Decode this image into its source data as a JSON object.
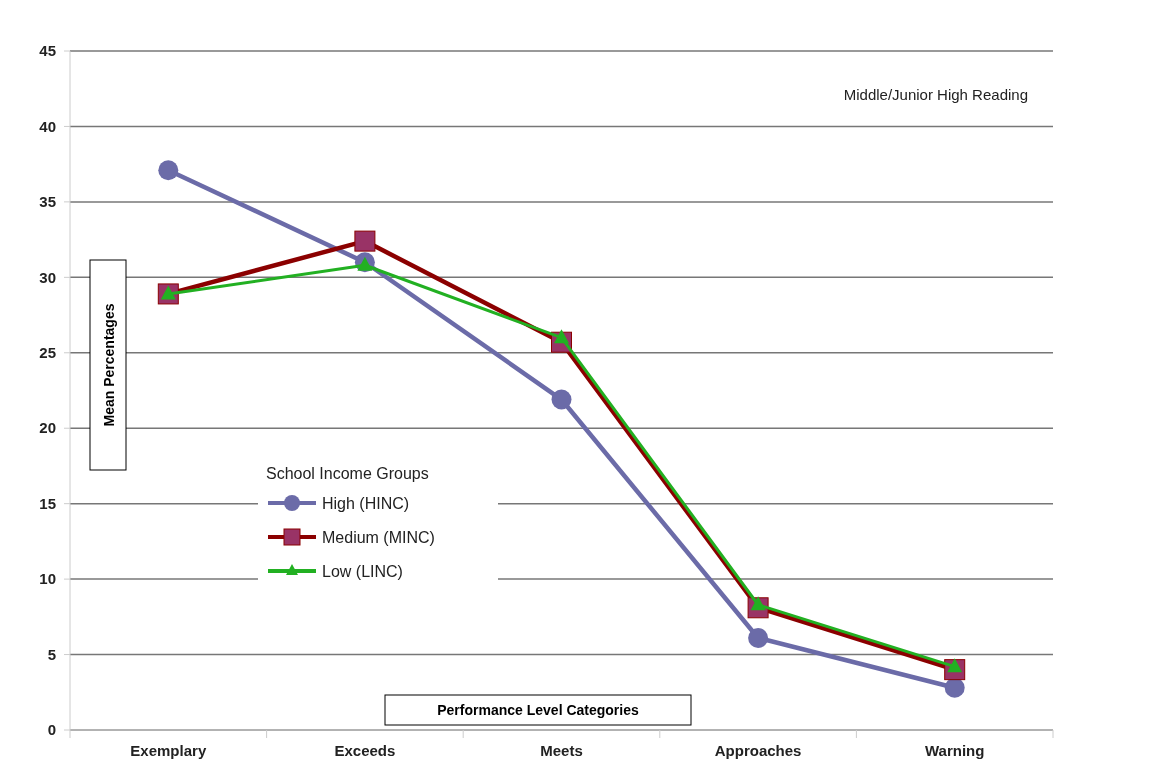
{
  "chart_data": {
    "type": "line",
    "annotations": [
      "Middle/Junior High Reading"
    ],
    "xlabel": "Performance Level Categories",
    "ylabel": "Mean Percentages",
    "legend_title": "School Income Groups",
    "legend": "center left",
    "grid": "y",
    "categories": [
      "Exemplary",
      "Exceeds",
      "Meets",
      "Approaches",
      "Warning"
    ],
    "ylim": [
      0,
      45
    ],
    "yticks": [
      0,
      5,
      10,
      15,
      20,
      25,
      30,
      35,
      40,
      45
    ],
    "series": [
      {
        "name": "High (HINC)",
        "color": "#6b6ba8",
        "marker": "circle",
        "values": [
          37.1,
          31.0,
          21.9,
          6.1,
          2.8
        ]
      },
      {
        "name": "Medium (MINC)",
        "color": "#8b0000",
        "marker": "square",
        "values": [
          28.9,
          32.4,
          25.7,
          8.1,
          4.0
        ]
      },
      {
        "name": "Low (LINC)",
        "color": "#22b022",
        "marker": "triangle",
        "values": [
          28.9,
          30.8,
          26.0,
          8.3,
          4.2
        ]
      }
    ]
  }
}
